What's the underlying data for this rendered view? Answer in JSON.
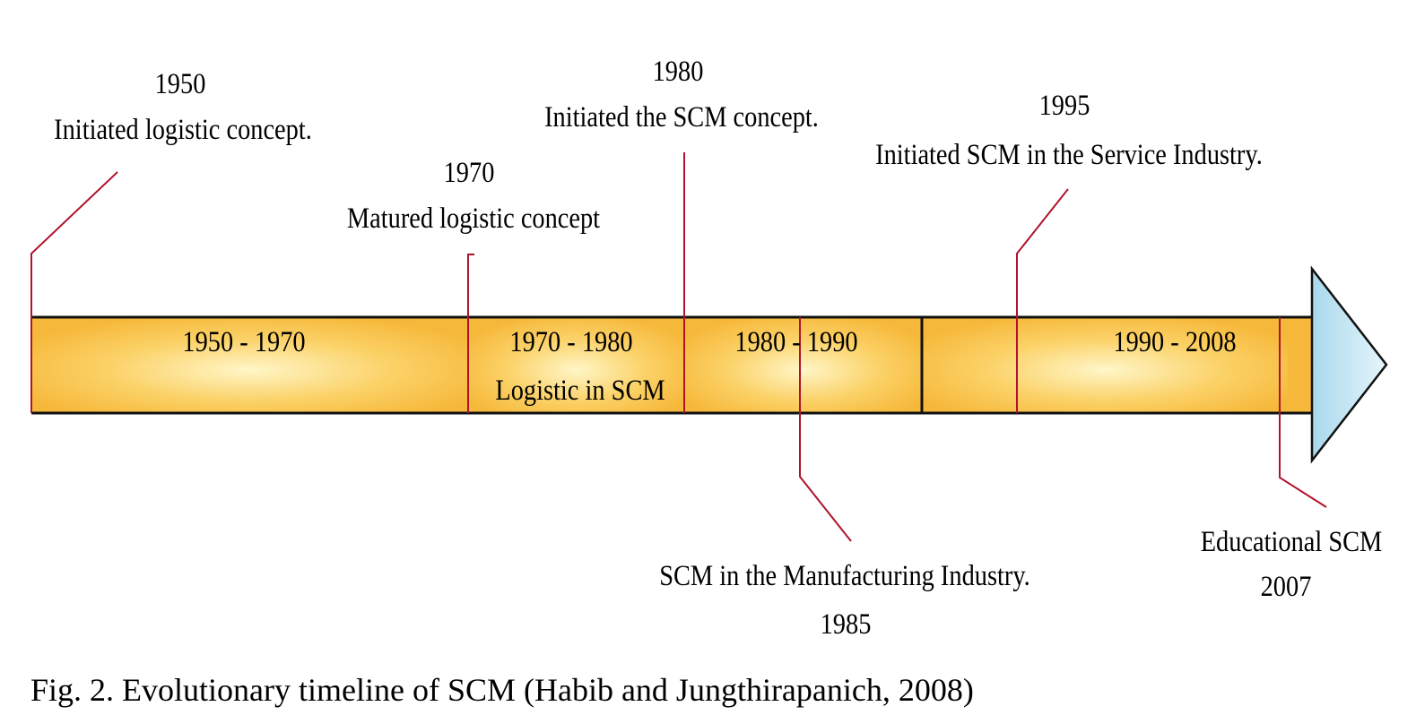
{
  "events": [
    {
      "id": "e1950",
      "year": "1950",
      "text": "Initiated logistic concept."
    },
    {
      "id": "e1970",
      "year": "1970",
      "text": "Matured logistic concept"
    },
    {
      "id": "e1980",
      "year": "1980",
      "text": "Initiated the SCM concept."
    },
    {
      "id": "e1995",
      "year": "1995",
      "text": "Initiated SCM in the Service Industry."
    },
    {
      "id": "e1985",
      "year": "1985",
      "text": "SCM in the Manufacturing Industry."
    },
    {
      "id": "e2007",
      "year": "2007",
      "text": "Educational SCM"
    }
  ],
  "periods": [
    {
      "label": "1950  - 1970"
    },
    {
      "label": "1970  - 1980",
      "sublabel": "Logistic in SCM"
    },
    {
      "label": "1980  - 1990"
    },
    {
      "label": "1990  - 2008"
    }
  ],
  "colors": {
    "bar": "#f6b83a",
    "bar_highlight": "#fff6c8",
    "connector": "#b0132b",
    "arrowhead": "#a8d8ec"
  },
  "caption": "Fig. 2. Evolutionary timeline of SCM (Habib and Jungthirapanich, 2008)"
}
